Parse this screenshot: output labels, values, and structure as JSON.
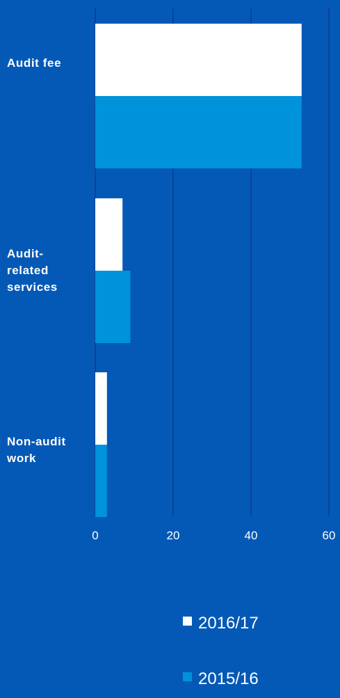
{
  "chart_data": {
    "type": "bar",
    "orientation": "horizontal",
    "categories": [
      "Audit fee",
      "Audit-related services",
      "Non-audit work"
    ],
    "category_label_lines": [
      [
        "Audit fee"
      ],
      [
        "Audit-",
        "related",
        "services"
      ],
      [
        "Non-audit",
        "work"
      ]
    ],
    "series": [
      {
        "name": "2016/17",
        "values": [
          53,
          7,
          3
        ],
        "color": "#ffffff"
      },
      {
        "name": "2015/16",
        "values": [
          53,
          9,
          3
        ],
        "color": "#0192dc"
      }
    ],
    "xlim": [
      0,
      60
    ],
    "xticks": [
      0,
      20,
      40,
      60
    ],
    "xlabel": "",
    "ylabel": "",
    "grid": true,
    "grid_axis": "x",
    "legend_position": "bottom-right",
    "colors": {
      "background": "#0559b6",
      "gridline": "#0d3a8f",
      "text": "#ffffff"
    }
  }
}
